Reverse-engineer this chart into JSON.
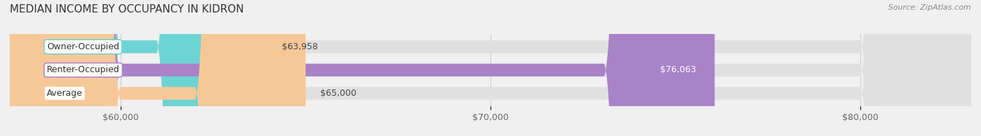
{
  "title": "MEDIAN INCOME BY OCCUPANCY IN KIDRON",
  "source": "Source: ZipAtlas.com",
  "categories": [
    "Owner-Occupied",
    "Renter-Occupied",
    "Average"
  ],
  "values": [
    63958,
    76063,
    65000
  ],
  "labels": [
    "$63,958",
    "$76,063",
    "$65,000"
  ],
  "bar_colors": [
    "#6dd4d4",
    "#aa82c8",
    "#f7c897"
  ],
  "background_color": "#f0f0f0",
  "xmin": 57000,
  "xmax": 83000,
  "xticks": [
    60000,
    70000,
    80000
  ],
  "xtick_labels": [
    "$60,000",
    "$70,000",
    "$80,000"
  ],
  "title_fontsize": 11,
  "label_fontsize": 9,
  "tick_fontsize": 9,
  "bar_height": 0.55
}
